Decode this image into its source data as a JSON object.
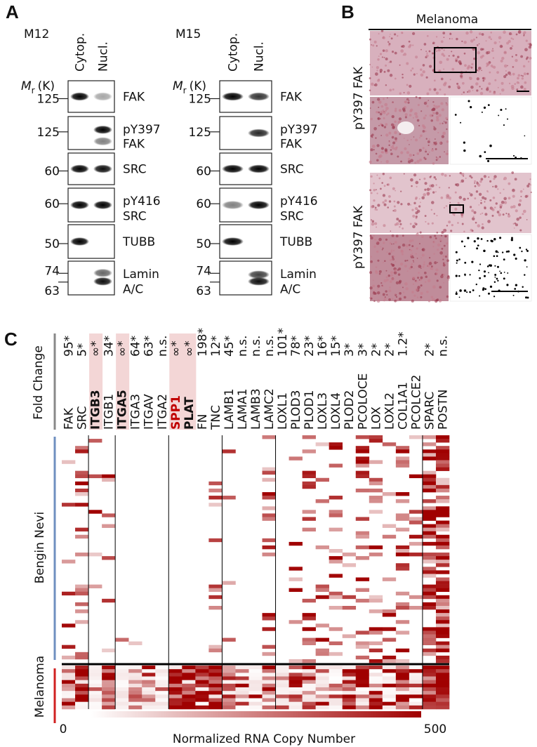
{
  "panel_labels": [
    "A",
    "B",
    "C"
  ],
  "panel_a": {
    "blots": [
      {
        "sample": "M12",
        "columns": [
          "Cytop.",
          "Nucl."
        ],
        "mr": "M",
        "mr_sub": "r",
        "mr_unit": "(K)",
        "rows": [
          {
            "markers": [
              "125"
            ],
            "label": [
              "FAK"
            ]
          },
          {
            "markers": [
              "125"
            ],
            "label": [
              "pY397",
              "FAK"
            ]
          },
          {
            "markers": [
              "60"
            ],
            "label": [
              "SRC"
            ]
          },
          {
            "markers": [
              "60"
            ],
            "label": [
              "pY416",
              "SRC"
            ]
          },
          {
            "markers": [
              "50"
            ],
            "label": [
              "TUBB"
            ]
          },
          {
            "markers": [
              "74",
              "63"
            ],
            "label": [
              "Lamin",
              "A/C"
            ]
          }
        ]
      },
      {
        "sample": "M15",
        "columns": [
          "Cytop.",
          "Nucl."
        ],
        "mr": "M",
        "mr_sub": "r",
        "mr_unit": "(K)",
        "rows": [
          {
            "markers": [
              "125"
            ],
            "label": [
              "FAK"
            ]
          },
          {
            "markers": [
              "125"
            ],
            "label": [
              "pY397",
              "FAK"
            ]
          },
          {
            "markers": [
              "60"
            ],
            "label": [
              "SRC"
            ]
          },
          {
            "markers": [
              "60"
            ],
            "label": [
              "pY416",
              "SRC"
            ]
          },
          {
            "markers": [
              "50"
            ],
            "label": [
              "TUBB"
            ]
          },
          {
            "markers": [
              "74",
              "63"
            ],
            "label": [
              "Lamin",
              "A/C"
            ]
          }
        ]
      }
    ]
  },
  "panel_b": {
    "title": "Melanoma",
    "row_labels": [
      "pY397 FAK",
      "pY397 FAK"
    ]
  },
  "panel_c": {
    "y_title": "Fold Change",
    "genes": [
      "FAK",
      "SRC",
      "ITGB3",
      "ITGB1",
      "ITGA5",
      "ITGA3",
      "ITGAV",
      "ITGA2",
      "SPP1",
      "PLAT",
      "FN",
      "TNC",
      "LAMB1",
      "LAMA1",
      "LAMB3",
      "LAMC2",
      "LOXL1",
      "PLOD3",
      "PLOD1",
      "LOXL3",
      "LOXL4",
      "PLOD2",
      "PCOLOCE",
      "LOX",
      "LOXL2",
      "COL1A1",
      "PCOLCE2",
      "SPARC",
      "POSTN"
    ],
    "fold_changes": [
      "95*",
      "5*",
      "∞*",
      "34*",
      "∞*",
      "64*",
      "63*",
      "n.s.",
      "∞*",
      "∞*",
      "198*",
      "12*",
      "45*",
      "n.s.",
      "n.s.",
      "n.s.",
      "101*",
      "78*",
      "23*",
      "16*",
      "15*",
      "3*",
      "3*",
      "2*",
      "2*",
      "1.2*",
      null,
      "2*",
      "n.s."
    ],
    "row_groups": [
      "Bengin Nevi",
      "Melanoma"
    ],
    "colorbar": {
      "min": 0,
      "max": 500,
      "label": "Normalized RNA Copy Number"
    }
  }
}
